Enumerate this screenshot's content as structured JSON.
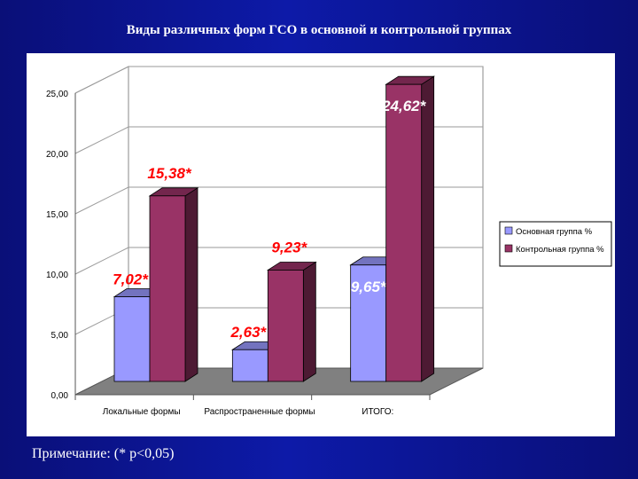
{
  "page": {
    "title": "Виды различных форм ГСО в основной и контрольной группах",
    "note": "Примечание: (* p<0,05)"
  },
  "chart_data": {
    "type": "bar",
    "title": "",
    "xlabel": "",
    "ylabel": "",
    "categories": [
      "Локальные формы",
      "Распространенные формы",
      "ИТОГО:"
    ],
    "series": [
      {
        "name": "Основная группа %",
        "values": [
          7.02,
          2.63,
          9.65
        ],
        "labels": [
          "7,02*",
          "2,63*",
          "9,65*"
        ],
        "color": "#9999ff"
      },
      {
        "name": "Контрольная группа %",
        "values": [
          15.38,
          9.23,
          24.62
        ],
        "labels": [
          "15,38*",
          "9,23*",
          "24,62*"
        ],
        "color": "#993366"
      }
    ],
    "ylim": [
      0,
      25
    ],
    "yticks": [
      "0,00",
      "5,00",
      "10,00",
      "15,00",
      "20,00",
      "25,00"
    ],
    "grid": true,
    "three_d": true,
    "legend_position": "right",
    "data_label_color": "#ff0000"
  }
}
